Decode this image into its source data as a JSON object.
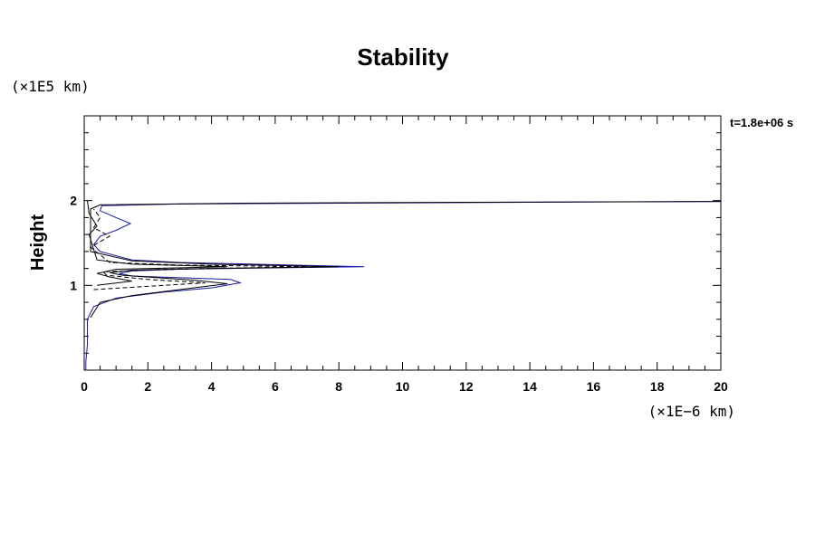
{
  "chart_data": {
    "type": "line",
    "title": "Stability",
    "ylabel": "Height",
    "xlabel": "",
    "x_unit": "(×1E−6 km)",
    "y_unit": "(×1E5 km)",
    "time_label": "t=1.8e+06 s",
    "xlim": [
      0,
      20
    ],
    "ylim": [
      0,
      3
    ],
    "x_ticks": [
      0,
      2,
      4,
      6,
      8,
      10,
      12,
      14,
      16,
      18,
      20
    ],
    "y_ticks": [
      1,
      2
    ],
    "grid": false,
    "series": [
      {
        "color": "#1a1aa6",
        "dash": "solid",
        "points": [
          [
            0.05,
            0
          ],
          [
            0.05,
            0.1
          ],
          [
            0.1,
            0.3
          ],
          [
            0.1,
            0.5
          ],
          [
            0.1,
            0.6
          ],
          [
            0.3,
            0.75
          ],
          [
            1.0,
            0.85
          ],
          [
            2.5,
            0.92
          ],
          [
            4.0,
            0.97
          ],
          [
            4.9,
            1.03
          ],
          [
            4.6,
            1.07
          ],
          [
            3.0,
            1.09
          ],
          [
            1.5,
            1.11
          ],
          [
            1.1,
            1.14
          ],
          [
            1.5,
            1.17
          ],
          [
            3.0,
            1.19
          ],
          [
            6.5,
            1.21
          ],
          [
            8.8,
            1.22
          ],
          [
            6.5,
            1.24
          ],
          [
            3.0,
            1.27
          ],
          [
            1.5,
            1.3
          ],
          [
            0.5,
            1.4
          ],
          [
            0.3,
            1.48
          ],
          [
            0.5,
            1.58
          ],
          [
            1.0,
            1.65
          ],
          [
            1.45,
            1.73
          ],
          [
            1.0,
            1.8
          ],
          [
            0.5,
            1.88
          ],
          [
            0.55,
            1.94
          ],
          [
            3.0,
            1.96
          ],
          [
            8.0,
            1.97
          ],
          [
            14.0,
            1.98
          ],
          [
            20.0,
            1.99
          ]
        ]
      },
      {
        "color": "#000000",
        "dash": "solid",
        "points": [
          [
            0.2,
            0.62
          ],
          [
            0.5,
            0.8
          ],
          [
            1.5,
            0.88
          ],
          [
            3.0,
            0.95
          ],
          [
            4.5,
            1.02
          ],
          [
            3.5,
            1.06
          ],
          [
            1.2,
            1.12
          ],
          [
            0.8,
            1.15
          ],
          [
            1.5,
            1.18
          ],
          [
            4.0,
            1.2
          ],
          [
            8.0,
            1.22
          ],
          [
            4.0,
            1.25
          ],
          [
            1.5,
            1.29
          ],
          [
            0.2,
            1.4
          ],
          [
            0.2,
            1.9
          ],
          [
            0.5,
            1.95
          ],
          [
            5.0,
            1.97
          ],
          [
            12.0,
            1.98
          ],
          [
            20.0,
            1.99
          ]
        ]
      },
      {
        "color": "#000000",
        "dash": "dashed",
        "points": [
          [
            0.3,
            0.95
          ],
          [
            2.5,
            1.0
          ],
          [
            3.8,
            1.03
          ],
          [
            2.0,
            1.07
          ],
          [
            0.7,
            1.12
          ],
          [
            0.6,
            1.16
          ],
          [
            2.5,
            1.19
          ],
          [
            7.0,
            1.22
          ],
          [
            3.0,
            1.24
          ],
          [
            0.8,
            1.27
          ],
          [
            0.2,
            1.45
          ],
          [
            0.8,
            1.58
          ],
          [
            0.3,
            1.68
          ],
          [
            0.5,
            1.8
          ],
          [
            0.3,
            1.9
          ]
        ]
      },
      {
        "color": "#000000",
        "dash": "solid",
        "points": [
          [
            0.4,
            1.0
          ],
          [
            1.5,
            1.05
          ],
          [
            0.8,
            1.1
          ],
          [
            0.4,
            1.14
          ],
          [
            1.0,
            1.19
          ],
          [
            4.5,
            1.22
          ],
          [
            1.5,
            1.25
          ],
          [
            0.4,
            1.3
          ],
          [
            0.15,
            1.6
          ],
          [
            0.4,
            1.7
          ],
          [
            0.15,
            1.85
          ],
          [
            0.1,
            2.0
          ]
        ]
      }
    ]
  }
}
